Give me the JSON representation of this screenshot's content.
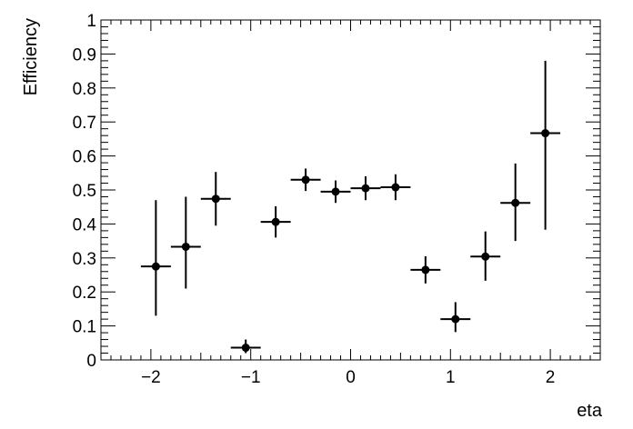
{
  "chart_data": {
    "type": "scatter",
    "xlabel": "eta",
    "ylabel": "Efficiency",
    "xlim": [
      -2.5,
      2.5
    ],
    "ylim": [
      0,
      1
    ],
    "x_ticks": [
      -2,
      -1,
      0,
      1,
      2
    ],
    "x_tick_labels": [
      "−2",
      "−1",
      "0",
      "1",
      "2"
    ],
    "y_ticks": [
      0,
      0.1,
      0.2,
      0.3,
      0.4,
      0.5,
      0.6,
      0.7,
      0.8,
      0.9,
      1
    ],
    "y_tick_labels": [
      "0",
      "0.1",
      "0.2",
      "0.3",
      "0.4",
      "0.5",
      "0.6",
      "0.7",
      "0.8",
      "0.9",
      "1"
    ],
    "grid": false,
    "legend": "none",
    "marker_color": "#000000",
    "series": [
      {
        "points": [
          {
            "x": -1.95,
            "xlo": -2.1,
            "xhi": -1.8,
            "y": 0.275,
            "ylo": 0.13,
            "yhi": 0.47
          },
          {
            "x": -1.65,
            "xlo": -1.8,
            "xhi": -1.5,
            "y": 0.333,
            "ylo": 0.21,
            "yhi": 0.48
          },
          {
            "x": -1.35,
            "xlo": -1.5,
            "xhi": -1.2,
            "y": 0.474,
            "ylo": 0.395,
            "yhi": 0.553
          },
          {
            "x": -1.05,
            "xlo": -1.2,
            "xhi": -0.9,
            "y": 0.036,
            "ylo": 0.02,
            "yhi": 0.06
          },
          {
            "x": -0.75,
            "xlo": -0.9,
            "xhi": -0.6,
            "y": 0.406,
            "ylo": 0.36,
            "yhi": 0.452
          },
          {
            "x": -0.45,
            "xlo": -0.6,
            "xhi": -0.3,
            "y": 0.53,
            "ylo": 0.497,
            "yhi": 0.563
          },
          {
            "x": -0.15,
            "xlo": -0.3,
            "xhi": 0.0,
            "y": 0.495,
            "ylo": 0.462,
            "yhi": 0.528
          },
          {
            "x": 0.15,
            "xlo": 0.0,
            "xhi": 0.3,
            "y": 0.505,
            "ylo": 0.47,
            "yhi": 0.54
          },
          {
            "x": 0.45,
            "xlo": 0.3,
            "xhi": 0.6,
            "y": 0.508,
            "ylo": 0.47,
            "yhi": 0.546
          },
          {
            "x": 0.75,
            "xlo": 0.6,
            "xhi": 0.9,
            "y": 0.265,
            "ylo": 0.225,
            "yhi": 0.305
          },
          {
            "x": 1.05,
            "xlo": 0.9,
            "xhi": 1.2,
            "y": 0.12,
            "ylo": 0.082,
            "yhi": 0.17
          },
          {
            "x": 1.35,
            "xlo": 1.2,
            "xhi": 1.5,
            "y": 0.304,
            "ylo": 0.233,
            "yhi": 0.378
          },
          {
            "x": 1.65,
            "xlo": 1.5,
            "xhi": 1.8,
            "y": 0.462,
            "ylo": 0.35,
            "yhi": 0.578
          },
          {
            "x": 1.95,
            "xlo": 1.8,
            "xhi": 2.1,
            "y": 0.667,
            "ylo": 0.383,
            "yhi": 0.88
          }
        ]
      }
    ]
  }
}
